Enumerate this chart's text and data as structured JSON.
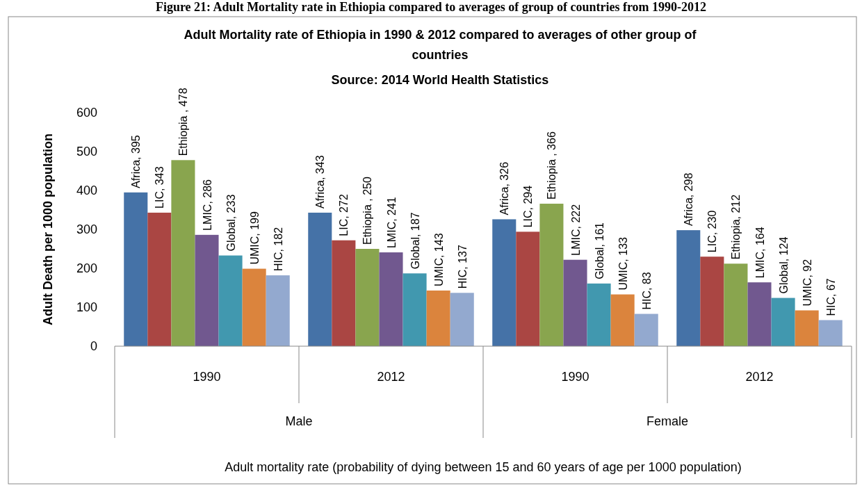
{
  "chart_data": {
    "type": "bar",
    "title": "Adult Mortality rate of Ethiopia in 1990 & 2012 compared to averages of other group of countries",
    "subtitle": "Source: 2014 World Health Statistics",
    "ylabel": "Adult Death per 1000 population",
    "annotations": [
      "Figure 21: Adult Mortality rate in Ethiopia compared to averages of group of countries from 1990-2012",
      "Male",
      "Female",
      "Adult mortality rate (probability of dying between 15 and 60 years of age per 1000 population)"
    ],
    "categories": [
      "1990",
      "2012",
      "1990",
      "2012"
    ],
    "series": [
      {
        "color": "#4572a7",
        "values": [
          395,
          343,
          326,
          298
        ],
        "value_labels": [
          "Africa, 395",
          "Africa, 343",
          "Africa, 326",
          "Africa, 298"
        ]
      },
      {
        "color": "#aa4643",
        "values": [
          343,
          272,
          294,
          230
        ],
        "value_labels": [
          "LIC, 343",
          "LIC, 272",
          "LIC, 294",
          "LIC, 230"
        ]
      },
      {
        "color": "#89a54e",
        "values": [
          478,
          250,
          366,
          212
        ],
        "value_labels": [
          "Ethiopia , 478",
          "Ethiopia , 250",
          "Ethiopia , 366",
          "Ethiopia, 212"
        ]
      },
      {
        "color": "#71588f",
        "values": [
          286,
          241,
          222,
          164
        ],
        "value_labels": [
          "LMIC, 286",
          "LMIC, 241",
          "LMIC, 222",
          "LMIC, 164"
        ]
      },
      {
        "color": "#4198af",
        "values": [
          233,
          187,
          161,
          124
        ],
        "value_labels": [
          "Global, 233",
          "Global, 187",
          "Global, 161",
          "Global, 124"
        ]
      },
      {
        "color": "#db843d",
        "values": [
          199,
          143,
          133,
          92
        ],
        "value_labels": [
          "UMIC, 199",
          "UMIC, 143",
          "UMIC, 133",
          "UMIC, 92"
        ]
      },
      {
        "color": "#93a9cf",
        "values": [
          182,
          137,
          83,
          67
        ],
        "value_labels": [
          "HIC, 182",
          "HIC, 137",
          "HIC, 83",
          "HIC, 67"
        ]
      }
    ],
    "ylim": [
      0,
      600
    ],
    "yticks": [
      0,
      100,
      200,
      300,
      400,
      500,
      600
    ],
    "grid": false,
    "legend": false
  }
}
